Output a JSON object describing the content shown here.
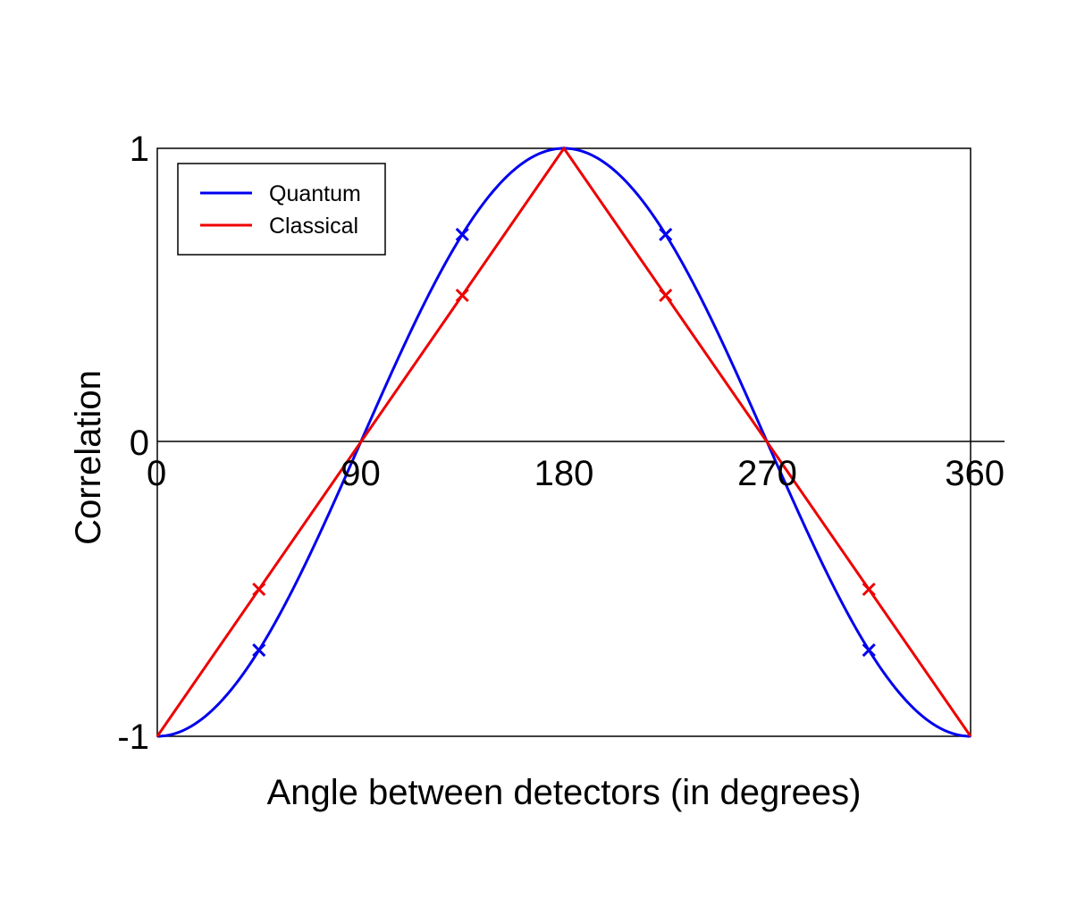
{
  "chart_data": {
    "type": "line",
    "title": "",
    "xlabel": "Angle between detectors (in degrees)",
    "ylabel": "Correlation",
    "xlim": [
      0,
      360
    ],
    "ylim": [
      -1,
      1
    ],
    "x_ticks": [
      {
        "value": 0,
        "label": "0"
      },
      {
        "value": 90,
        "label": "90"
      },
      {
        "value": 180,
        "label": "180"
      },
      {
        "value": 270,
        "label": "270"
      },
      {
        "value": 360,
        "label": "360"
      }
    ],
    "y_ticks": [
      {
        "value": -1,
        "label": "-1"
      },
      {
        "value": 0,
        "label": "0"
      },
      {
        "value": 1,
        "label": "1"
      }
    ],
    "grid": false,
    "legend_position": "top-left",
    "series": [
      {
        "name": "Quantum",
        "color": "#0000ee",
        "function": "-cos(x)",
        "markers": [
          {
            "x": 45,
            "y": -0.707
          },
          {
            "x": 135,
            "y": 0.707
          },
          {
            "x": 225,
            "y": 0.707
          },
          {
            "x": 315,
            "y": -0.707
          }
        ]
      },
      {
        "name": "Classical",
        "color": "#ee0000",
        "x": [
          0,
          180,
          360
        ],
        "y": [
          -1,
          1,
          -1
        ],
        "markers": [
          {
            "x": 45,
            "y": -0.5
          },
          {
            "x": 135,
            "y": 0.5
          },
          {
            "x": 225,
            "y": 0.5
          },
          {
            "x": 315,
            "y": -0.5
          }
        ]
      }
    ]
  }
}
